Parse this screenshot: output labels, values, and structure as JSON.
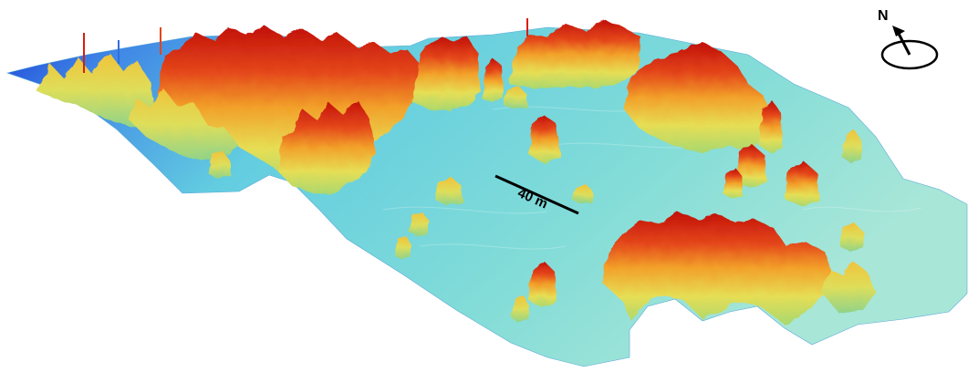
{
  "scale_bar": {
    "label": "40 m",
    "color": "#000000"
  },
  "north_arrow": {
    "label": "N",
    "icon": "north-arrow-icon"
  },
  "colors": {
    "ground_low": "#2f6fe0",
    "ground_mid": "#5ccfe0",
    "ground_high": "#9fe3d8",
    "canopy_low": "#e8e05a",
    "canopy_mid": "#f39a2a",
    "canopy_high": "#d81e10",
    "canopy_peak": "#b80c08"
  }
}
